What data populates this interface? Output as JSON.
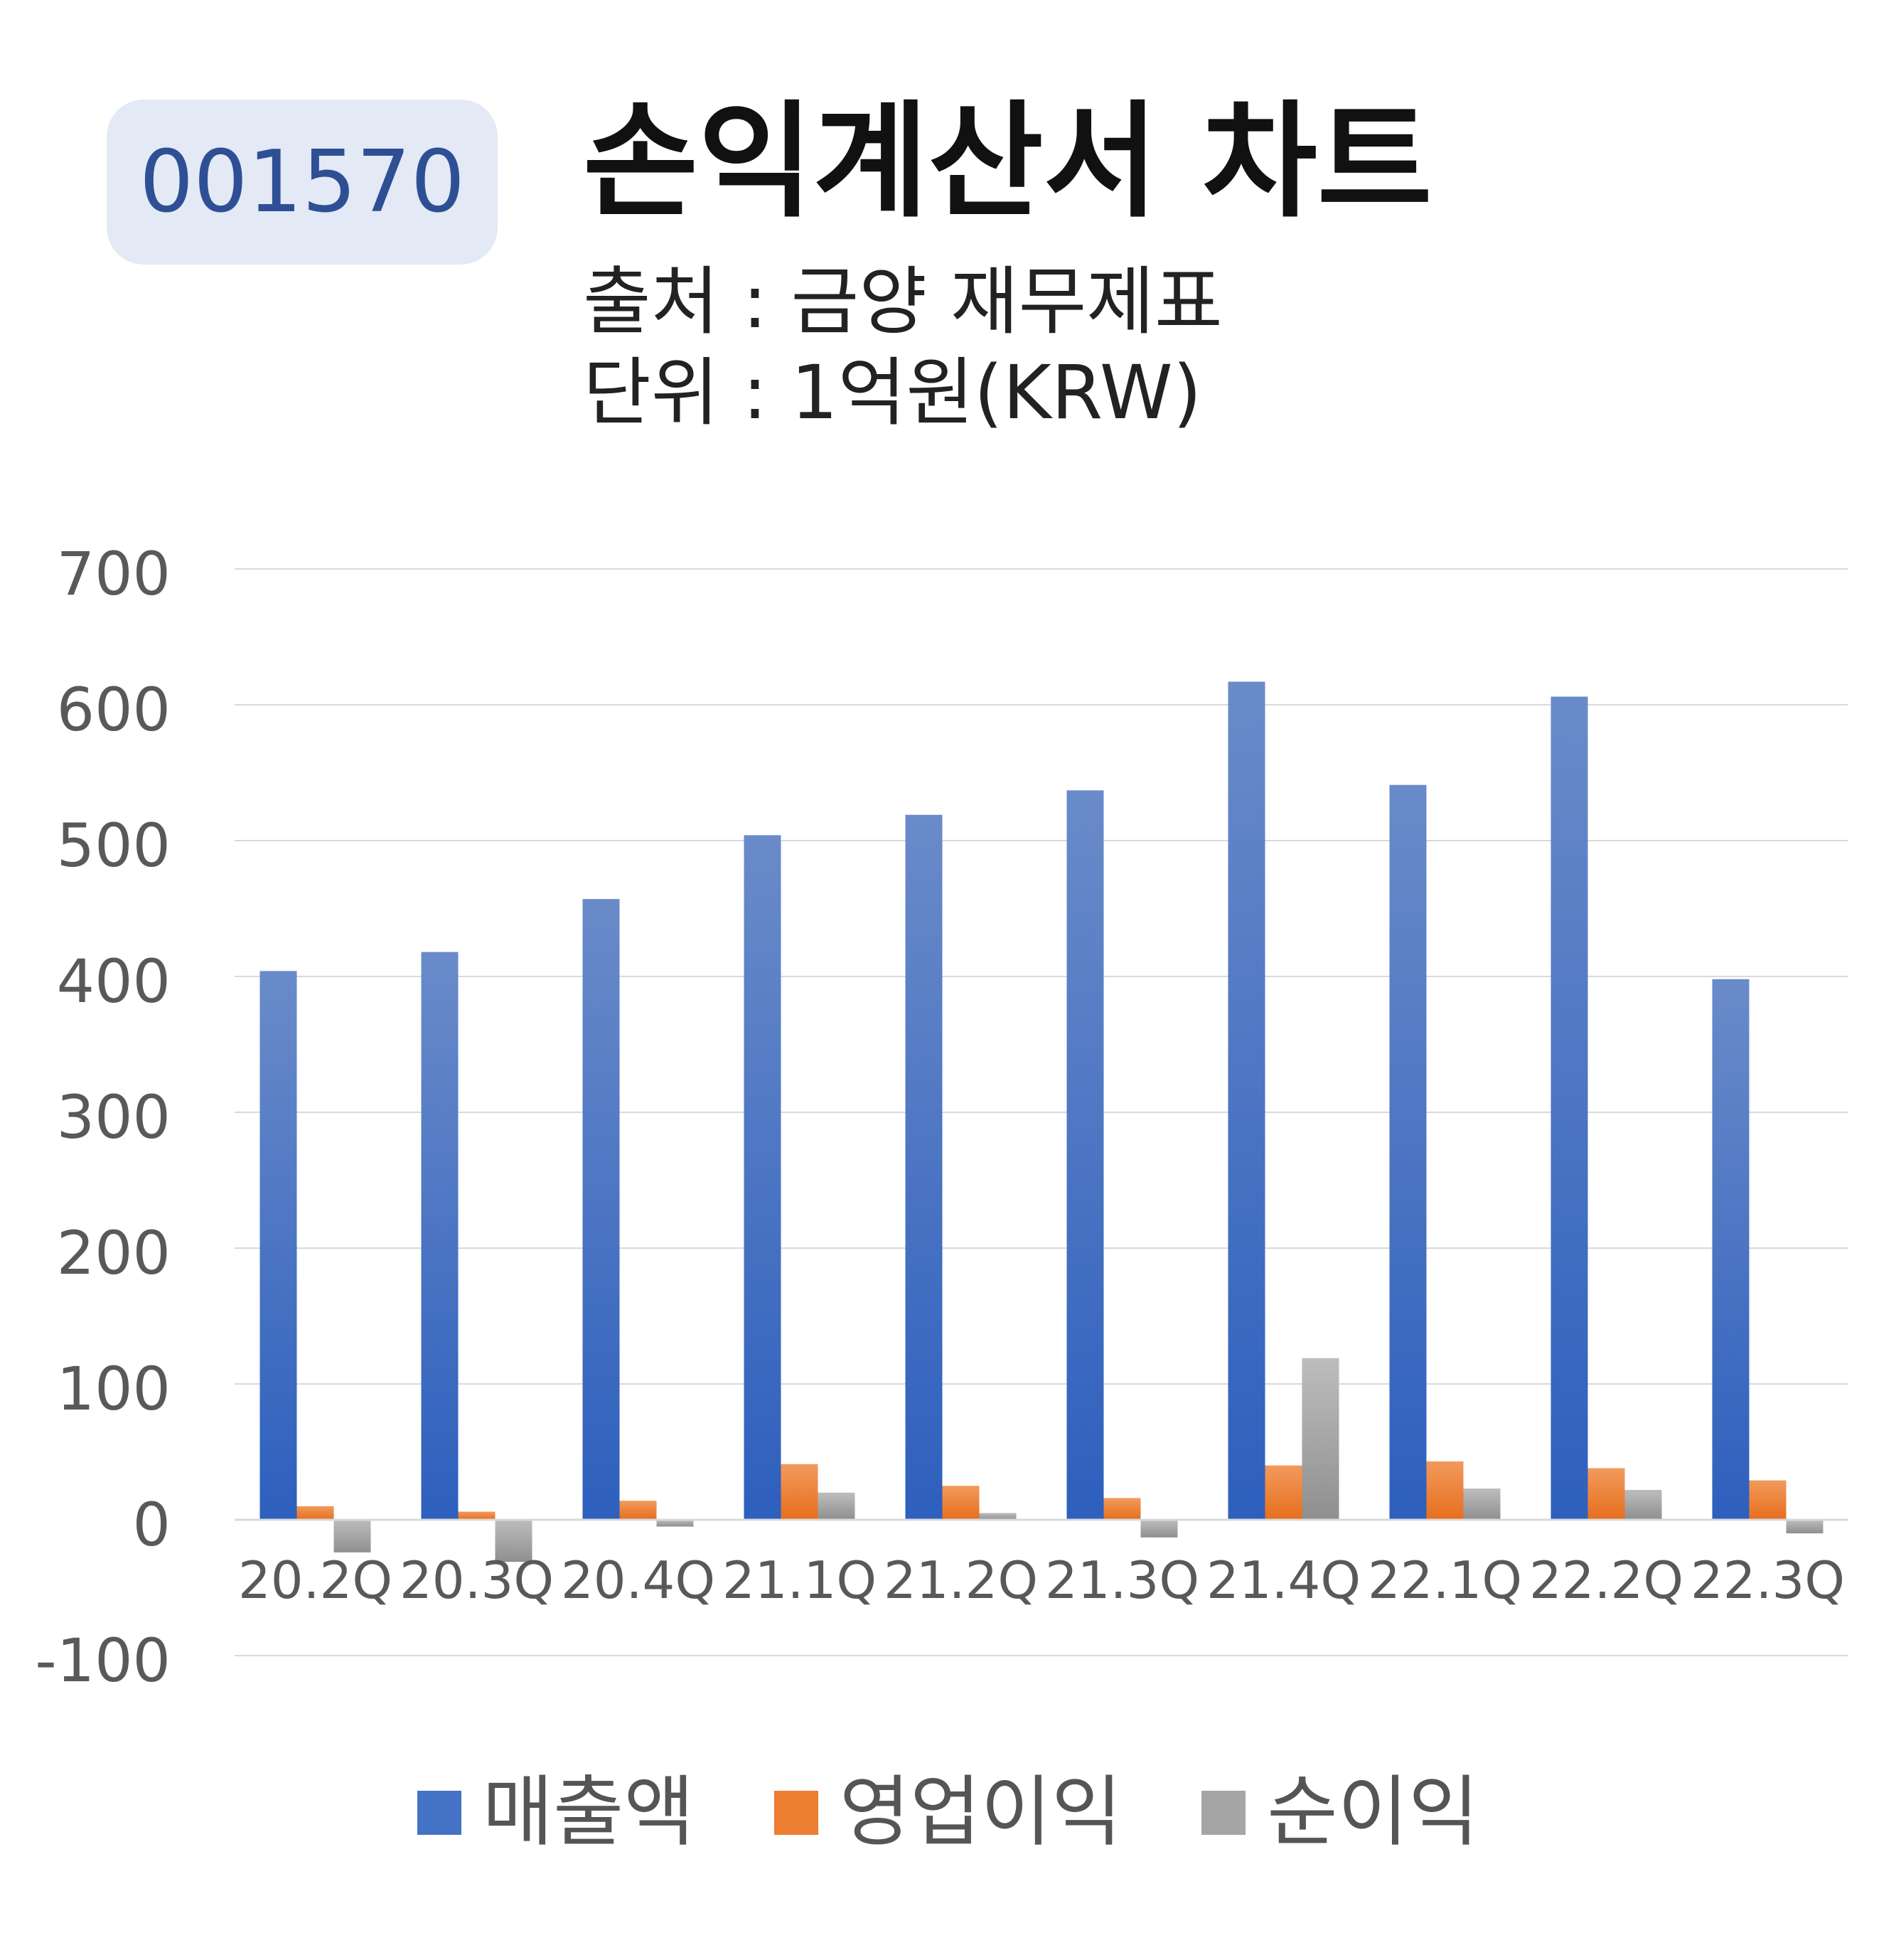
{
  "header": {
    "ticker": "001570",
    "title": "손익계산서 차트",
    "source": "출처 : 금양 재무제표",
    "unit": "단위 : 1억원(KRW)"
  },
  "colors": {
    "revenue": "#4472c4",
    "operating_profit": "#ed7d31",
    "net_income": "#a5a5a5",
    "badge_bg": "#e3e9f5",
    "badge_text": "#2f4f95",
    "gridline": "#d9d9d9",
    "axis_text": "#595959"
  },
  "chart_data": {
    "type": "bar",
    "categories": [
      "20.2Q",
      "20.3Q",
      "20.4Q",
      "21.1Q",
      "21.2Q",
      "21.3Q",
      "21.4Q",
      "22.1Q",
      "22.2Q",
      "22.3Q"
    ],
    "series": [
      {
        "name": "매출액",
        "values": [
          404,
          418,
          457,
          504,
          519,
          537,
          617,
          541,
          606,
          398
        ]
      },
      {
        "name": "영업이익",
        "values": [
          10,
          6,
          14,
          41,
          25,
          16,
          40,
          43,
          38,
          29
        ]
      },
      {
        "name": "순이익",
        "values": [
          -24,
          -31,
          -5,
          20,
          5,
          -13,
          119,
          23,
          22,
          -10
        ]
      }
    ],
    "ylim": [
      -100,
      700
    ],
    "yticks": [
      "700",
      "600",
      "500",
      "400",
      "300",
      "200",
      "100",
      "0",
      "-100"
    ],
    "grid": true,
    "legend_position": "bottom"
  }
}
